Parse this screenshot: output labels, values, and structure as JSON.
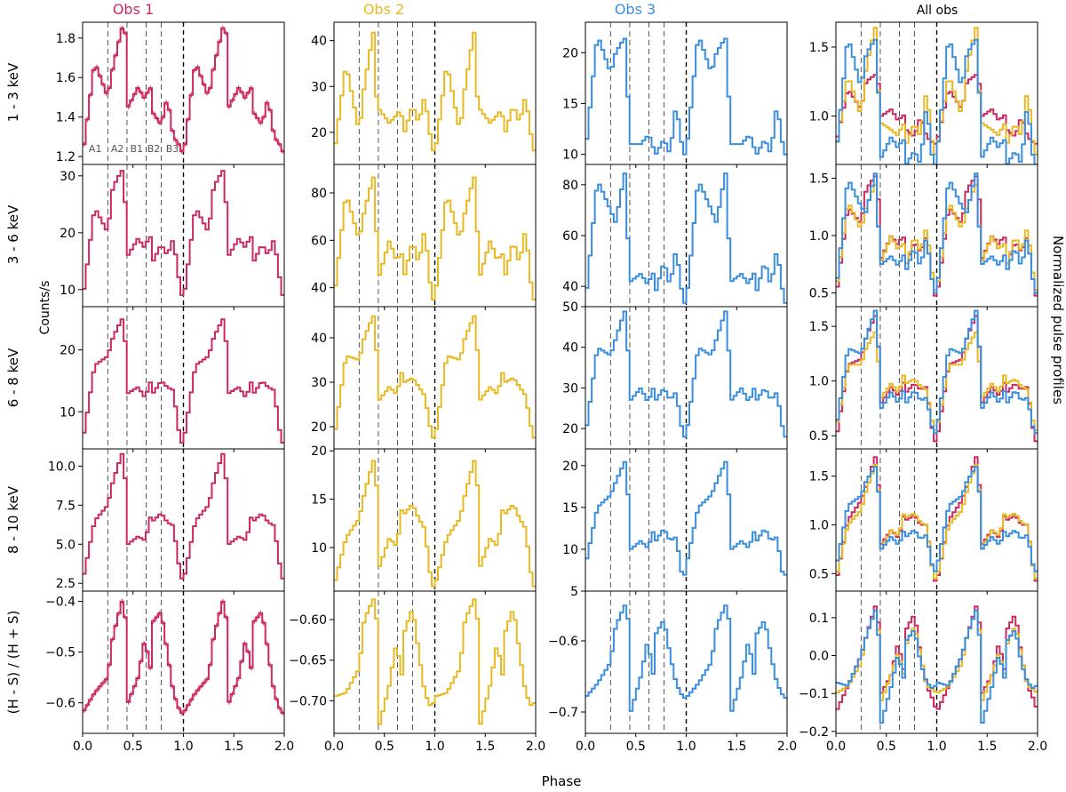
{
  "colors": {
    "obs1": "#cc2a5e",
    "obs2": "#e8b923",
    "obs3": "#3a8ee0",
    "axis": "#000000",
    "guide": "#555555"
  },
  "figure": {
    "column_titles": [
      "Obs 1",
      "Obs 2",
      "Obs 3",
      "All obs"
    ],
    "row_labels": [
      "1 - 3 keV",
      "3 - 6 keV",
      "6 - 8 keV",
      "8 - 10 keV",
      "(H - S) / (H + S)"
    ],
    "xlabel": "Phase",
    "ylabel_left": "Counts/s",
    "ylabel_right": "Normalized pulse profiles",
    "x_tick_labels": [
      "0.0",
      "0.5",
      "1.0",
      "1.5",
      "2.0"
    ],
    "region_labels": [
      "A1",
      "A2",
      "B1",
      "B2",
      "B3"
    ]
  },
  "chart_data": {
    "type": "line",
    "drawstyle": "steps",
    "xlim": [
      0,
      2
    ],
    "x_ticks": [
      0,
      0.5,
      1.0,
      1.5,
      2.0
    ],
    "bins_per_cycle": 32,
    "phase_guides": [
      0.25,
      0.44,
      0.63,
      0.78,
      1.0
    ],
    "anchor_phases": [
      0.0,
      0.12,
      0.25,
      0.3,
      0.39,
      0.42,
      0.45,
      0.55,
      0.63,
      0.66,
      0.7,
      0.78,
      0.84,
      0.9,
      0.97
    ],
    "rows": [
      {
        "band": "1 - 3 keV",
        "panels": [
          {
            "series": "Obs 1",
            "ylim": [
              1.16,
              1.88
            ],
            "yticks": [
              1.2,
              1.4,
              1.6,
              1.8
            ],
            "tick_labels": [
              "1.2",
              "1.4",
              "1.6",
              "1.8"
            ],
            "anchor_values": [
              1.2,
              1.68,
              1.5,
              1.65,
              1.85,
              1.85,
              1.45,
              1.55,
              1.48,
              1.6,
              1.42,
              1.36,
              1.5,
              1.3,
              1.25
            ],
            "error_bars": true
          },
          {
            "series": "Obs 2",
            "ylim": [
              13,
              44
            ],
            "yticks": [
              20,
              30,
              40
            ],
            "tick_labels": [
              "20",
              "30",
              "40"
            ],
            "anchor_values": [
              15,
              35,
              20,
              30,
              42,
              28,
              25,
              22,
              24,
              25,
              20,
              26,
              22,
              28,
              17
            ]
          },
          {
            "series": "Obs 3",
            "ylim": [
              9,
              23
            ],
            "yticks": [
              10,
              15,
              20
            ],
            "tick_labels": [
              "10",
              "15",
              "20"
            ],
            "anchor_values": [
              10,
              21.8,
              18,
              20,
              21.5,
              16,
              11,
              11,
              12,
              11,
              10,
              11.5,
              10,
              15,
              10
            ]
          },
          {
            "series": "All obs",
            "ylim": [
              0.65,
              1.68
            ],
            "yticks": [
              1.0,
              1.5
            ],
            "tick_labels": [
              "1.0",
              "1.5"
            ],
            "normalized": [
              [
                0.8,
                1.2,
                1.05,
                1.25,
                1.3,
                1.25,
                1.0,
                1.05,
                0.95,
                1.05,
                0.9,
                0.85,
                1.0,
                0.85,
                0.8
              ],
              [
                0.75,
                1.3,
                1.0,
                1.35,
                1.65,
                1.2,
                0.95,
                0.9,
                0.85,
                1.0,
                0.8,
                0.95,
                0.85,
                1.2,
                0.7
              ],
              [
                0.7,
                1.58,
                1.2,
                1.45,
                1.56,
                1.2,
                0.7,
                0.85,
                0.75,
                0.9,
                0.65,
                0.75,
                0.65,
                1.1,
                0.6
              ]
            ]
          }
        ]
      },
      {
        "band": "3 - 6 keV",
        "panels": [
          {
            "series": "Obs 1",
            "ylim": [
              7,
              32
            ],
            "yticks": [
              10,
              20,
              30
            ],
            "tick_labels": [
              "10",
              "20",
              "30"
            ],
            "anchor_values": [
              8,
              24.5,
              20,
              28,
              31,
              26,
              16,
              19,
              17,
              21,
              15,
              18,
              16,
              19,
              10
            ]
          },
          {
            "series": "Obs 2",
            "ylim": [
              32,
              92
            ],
            "yticks": [
              40,
              60,
              80
            ],
            "tick_labels": [
              "40",
              "60",
              "80"
            ],
            "anchor_values": [
              35,
              80,
              60,
              72,
              87,
              65,
              45,
              60,
              50,
              58,
              45,
              60,
              50,
              65,
              35
            ]
          },
          {
            "series": "Obs 3",
            "ylim": [
              32,
              88
            ],
            "yticks": [
              40,
              60,
              80
            ],
            "tick_labels": [
              "40",
              "60",
              "80"
            ],
            "anchor_values": [
              33,
              82,
              70,
              65,
              85,
              60,
              42,
              45,
              40,
              48,
              38,
              50,
              40,
              55,
              34
            ]
          },
          {
            "series": "All obs",
            "ylim": [
              0.38,
              1.62
            ],
            "yticks": [
              0.5,
              1.0,
              1.5
            ],
            "tick_labels": [
              "0.5",
              "1.0",
              "1.5"
            ],
            "normalized": [
              [
                0.45,
                1.25,
                1.1,
                1.4,
                1.52,
                1.35,
                0.8,
                1.0,
                0.9,
                1.08,
                0.75,
                0.95,
                0.85,
                1.0,
                0.5
              ],
              [
                0.5,
                1.3,
                1.05,
                1.25,
                1.45,
                1.1,
                0.78,
                1.0,
                0.85,
                1.0,
                0.75,
                1.0,
                0.85,
                1.08,
                0.55
              ],
              [
                0.5,
                1.5,
                1.25,
                1.2,
                1.55,
                1.1,
                0.75,
                0.82,
                0.72,
                0.88,
                0.7,
                0.9,
                0.72,
                1.0,
                0.5
              ]
            ]
          }
        ]
      },
      {
        "band": "6 - 8 keV",
        "panels": [
          {
            "series": "Obs 1",
            "ylim": [
              4,
              27
            ],
            "yticks": [
              10,
              20
            ],
            "tick_labels": [
              "10",
              "20"
            ],
            "anchor_values": [
              5,
              17.5,
              19,
              22,
              25,
              22,
              13,
              14,
              12,
              15.5,
              13,
              15,
              14,
              13.5,
              5
            ]
          },
          {
            "series": "Obs 2",
            "ylim": [
              15,
              47
            ],
            "yticks": [
              20,
              30,
              40
            ],
            "tick_labels": [
              "20",
              "30",
              "40"
            ],
            "anchor_values": [
              17,
              36,
              35,
              40,
              45,
              38,
              26,
              29,
              27,
              33,
              30,
              31,
              29,
              27,
              18
            ]
          },
          {
            "series": "Obs 3",
            "ylim": [
              15,
              50
            ],
            "yticks": [
              20,
              30,
              40,
              50
            ],
            "tick_labels": [
              "20",
              "30",
              "40",
              "50"
            ],
            "anchor_values": [
              18,
              40,
              38,
              42,
              49,
              40,
              27,
              30,
              26,
              31,
              27,
              30,
              27,
              29,
              18
            ]
          },
          {
            "series": "All obs",
            "ylim": [
              0.38,
              1.68
            ],
            "yticks": [
              0.5,
              1.0,
              1.5
            ],
            "tick_labels": [
              "0.5",
              "1.0",
              "1.5"
            ],
            "normalized": [
              [
                0.45,
                1.15,
                1.2,
                1.4,
                1.6,
                1.35,
                0.8,
                0.95,
                0.85,
                1.02,
                0.9,
                0.98,
                0.92,
                0.95,
                0.45
              ],
              [
                0.55,
                1.15,
                1.15,
                1.3,
                1.45,
                1.2,
                0.85,
                0.98,
                0.88,
                1.08,
                0.98,
                1.02,
                0.95,
                0.92,
                0.55
              ],
              [
                0.55,
                1.3,
                1.25,
                1.4,
                1.65,
                1.35,
                0.75,
                0.9,
                0.78,
                0.95,
                0.8,
                0.92,
                0.82,
                0.85,
                0.5
              ]
            ]
          }
        ]
      },
      {
        "band": "8 - 10 keV",
        "panels": [
          {
            "series": "Obs 1",
            "ylim": [
              2.0,
              11.1
            ],
            "yticks": [
              2.5,
              5.0,
              7.5,
              10.0
            ],
            "tick_labels": [
              "2.5",
              "5.0",
              "7.5",
              "10.0"
            ],
            "anchor_values": [
              2.6,
              6.5,
              7.5,
              9.0,
              10.8,
              9.5,
              5.0,
              5.5,
              5.2,
              6.8,
              6.5,
              7.0,
              6.4,
              6.2,
              3.0
            ]
          },
          {
            "series": "Obs 2",
            "ylim": [
              5.5,
              20.2
            ],
            "yticks": [
              10,
              15,
              20
            ],
            "tick_labels": [
              "10",
              "15",
              "20"
            ],
            "anchor_values": [
              6,
              11,
              13,
              15.5,
              19,
              17,
              8,
              11,
              10,
              14,
              13.5,
              14.5,
              13,
              12,
              6
            ]
          },
          {
            "series": "Obs 3",
            "ylim": [
              5,
              22
            ],
            "yticks": [
              5,
              10,
              15,
              20
            ],
            "tick_labels": [
              "5",
              "10",
              "15",
              "20"
            ],
            "anchor_values": [
              8,
              15,
              16.5,
              18,
              20.5,
              17,
              10,
              11,
              10,
              12.5,
              11,
              12.5,
              11,
              11.5,
              6
            ]
          },
          {
            "series": "All obs",
            "ylim": [
              0.32,
              1.78
            ],
            "yticks": [
              0.5,
              1.0,
              1.5
            ],
            "tick_labels": [
              "0.5",
              "1.0",
              "1.5"
            ],
            "normalized": [
              [
                0.4,
                1.05,
                1.25,
                1.4,
                1.7,
                1.45,
                0.8,
                0.95,
                0.85,
                1.1,
                1.05,
                1.1,
                1.0,
                1.0,
                0.45
              ],
              [
                0.45,
                1.0,
                1.15,
                1.35,
                1.62,
                1.4,
                0.75,
                0.95,
                0.88,
                1.12,
                1.08,
                1.12,
                1.02,
                1.0,
                0.45
              ],
              [
                0.55,
                1.2,
                1.3,
                1.45,
                1.6,
                1.38,
                0.75,
                0.88,
                0.78,
                0.95,
                0.88,
                0.95,
                0.85,
                0.9,
                0.5
              ]
            ]
          }
        ]
      },
      {
        "band": "(H - S) / (H + S)",
        "panels": [
          {
            "series": "Obs 1",
            "ylim": [
              -0.66,
              -0.38
            ],
            "yticks": [
              -0.6,
              -0.5,
              -0.4
            ],
            "tick_labels": [
              "−0.6",
              "−0.5",
              "−0.4"
            ],
            "anchor_values": [
              -0.62,
              -0.58,
              -0.55,
              -0.47,
              -0.4,
              -0.42,
              -0.6,
              -0.55,
              -0.46,
              -0.57,
              -0.44,
              -0.42,
              -0.5,
              -0.58,
              -0.62
            ],
            "error_bars": true
          },
          {
            "series": "Obs 2",
            "ylim": [
              -0.74,
              -0.565
            ],
            "yticks": [
              -0.7,
              -0.65,
              -0.6
            ],
            "tick_labels": [
              "−0.70",
              "−0.65",
              "−0.60"
            ],
            "anchor_values": [
              -0.695,
              -0.69,
              -0.66,
              -0.6,
              -0.575,
              -0.59,
              -0.73,
              -0.68,
              -0.62,
              -0.69,
              -0.615,
              -0.585,
              -0.64,
              -0.69,
              -0.71
            ]
          },
          {
            "series": "Obs 3",
            "ylim": [
              -0.73,
              -0.53
            ],
            "yticks": [
              -0.7,
              -0.6
            ],
            "tick_labels": [
              "−0.7",
              "−0.6"
            ],
            "anchor_values": [
              -0.68,
              -0.66,
              -0.63,
              -0.58,
              -0.55,
              -0.56,
              -0.7,
              -0.65,
              -0.59,
              -0.67,
              -0.59,
              -0.57,
              -0.62,
              -0.66,
              -0.68
            ]
          },
          {
            "series": "All obs",
            "ylim": [
              -0.205,
              0.17
            ],
            "yticks": [
              -0.2,
              -0.1,
              0.0,
              0.1
            ],
            "tick_labels": [
              "−0.2",
              "−0.1",
              "0.0",
              "0.1"
            ],
            "normalized": [
              [
                -0.15,
                -0.08,
                0.0,
                0.05,
                0.13,
                0.1,
                -0.1,
                -0.05,
                0.05,
                -0.08,
                0.07,
                0.11,
                0.0,
                -0.08,
                -0.12
              ],
              [
                -0.1,
                -0.08,
                -0.02,
                0.05,
                0.12,
                0.08,
                -0.12,
                -0.05,
                0.02,
                -0.08,
                0.03,
                0.08,
                0.0,
                -0.08,
                -0.09
              ],
              [
                -0.07,
                -0.08,
                0.0,
                0.05,
                0.12,
                0.07,
                -0.18,
                -0.08,
                0.02,
                -0.1,
                0.04,
                0.07,
                -0.02,
                -0.07,
                -0.09
              ]
            ]
          }
        ]
      }
    ]
  }
}
